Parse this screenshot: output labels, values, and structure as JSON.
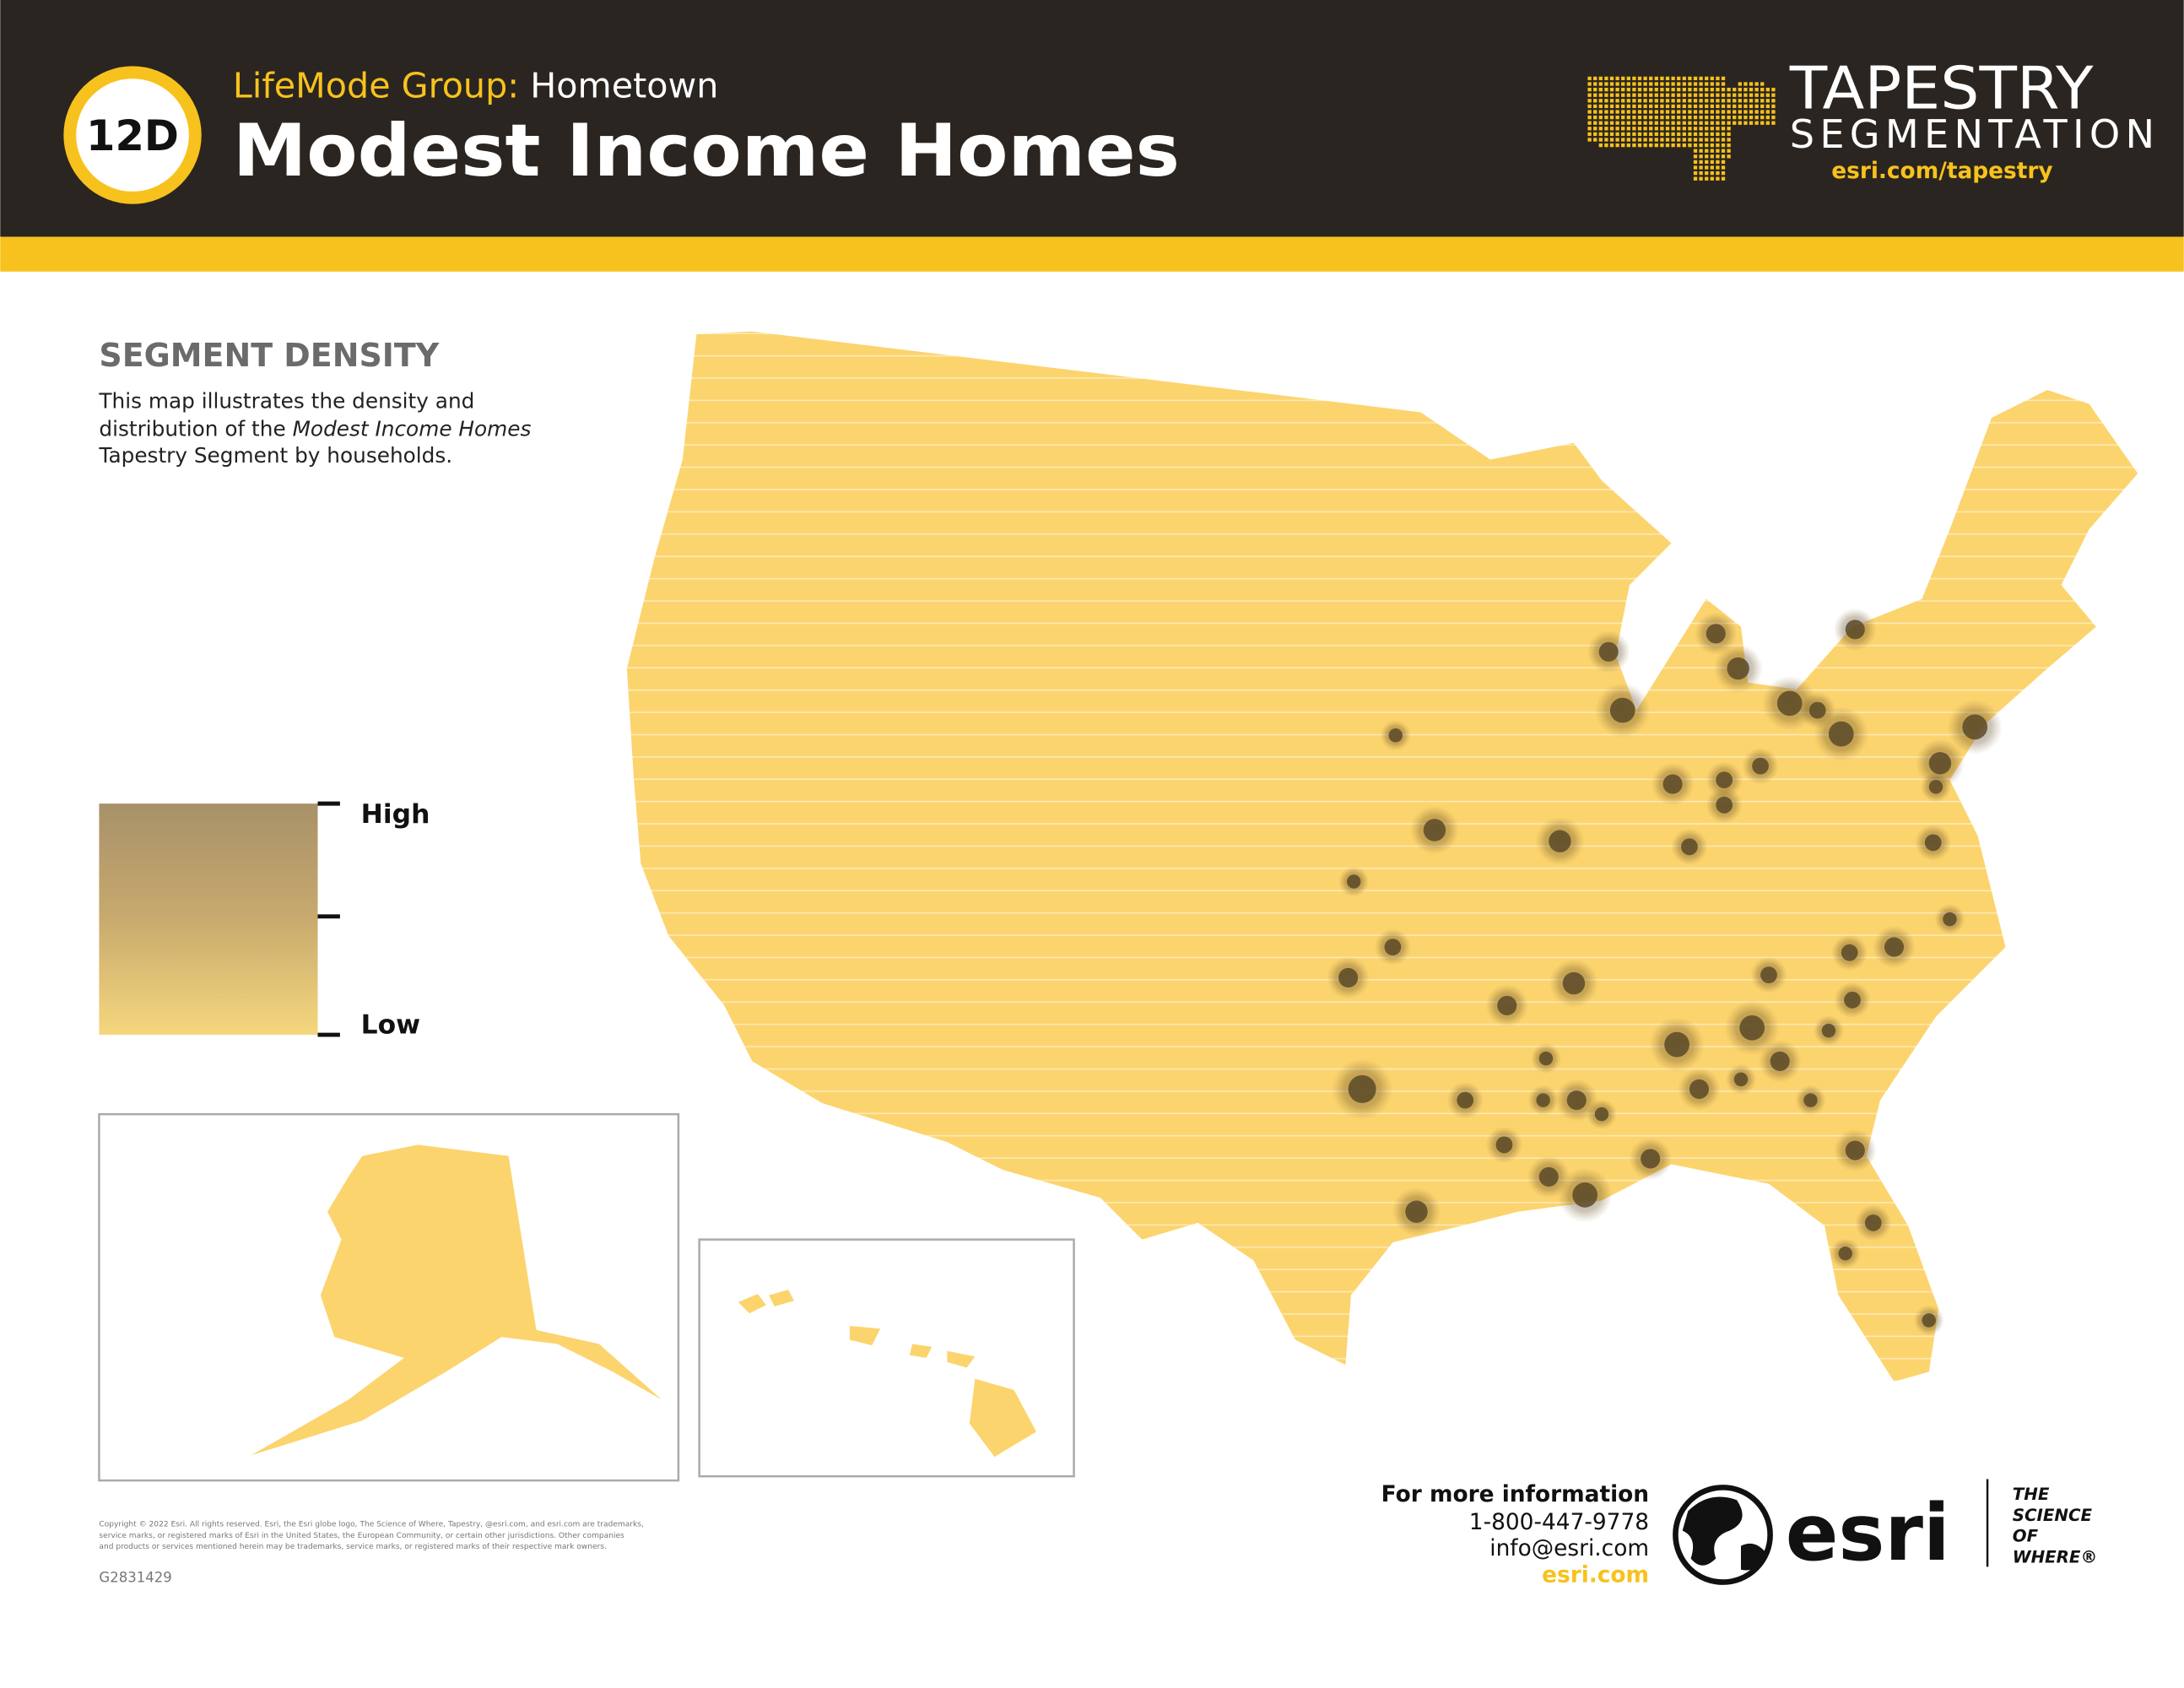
{
  "header": {
    "badge": "12D",
    "lifemode_label": "LifeMode Group:",
    "lifemode_name": "Hometown",
    "title": "Modest Income Homes",
    "brand": "TAPESTRY",
    "brand_sub": "SEGMENTATION",
    "url": "esri.com/tapestry"
  },
  "section": {
    "heading": "SEGMENT DENSITY",
    "description": [
      "This map illustrates the density and",
      "distribution of the",
      "Modest Income Homes",
      "Tapestry Segment by households."
    ]
  },
  "legend": {
    "high": "High",
    "low": "Low"
  },
  "contact": {
    "heading": "For more information",
    "phone": "1-800-447-9778",
    "email": "info@esri.com",
    "web": "esri.com"
  },
  "logo": {
    "name": "esri",
    "tagline": [
      "THE",
      "SCIENCE",
      "OF",
      "WHERE®"
    ]
  },
  "footer": {
    "copyright": [
      "Copyright © 2022 Esri. All rights reserved. Esri, the Esri globe logo, The Science of Where, Tapestry, @esri.com, and esri.com are trademarks,",
      "service marks, or registered marks of Esri in the United States, the European Community, or certain other jurisdictions. Other companies",
      "and products or services mentioned herein may be trademarks, service marks, or registered marks of their respective mark owners."
    ],
    "code": "G2831429"
  }
}
